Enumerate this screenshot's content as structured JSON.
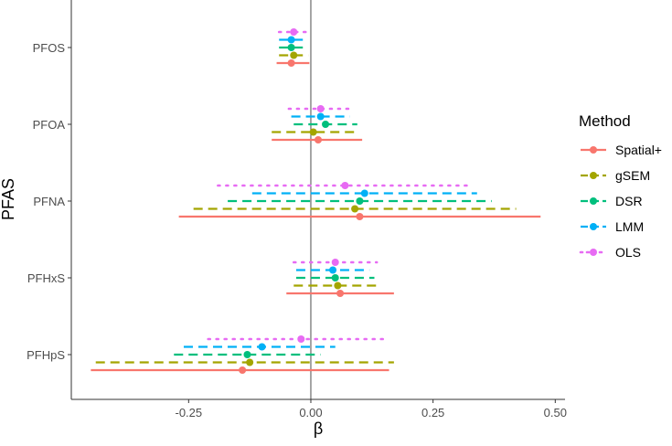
{
  "chart_data": {
    "type": "forest",
    "xlabel": "β",
    "ylabel": "PFAS",
    "xlim": [
      -0.49,
      0.52
    ],
    "x_ticks": [
      -0.25,
      0.0,
      0.25,
      0.5
    ],
    "x_tick_labels": [
      "-0.25",
      "0.00",
      "0.25",
      "0.50"
    ],
    "reference_line_x": 0,
    "grid": false,
    "legend_position": "right",
    "legend_title": "Method",
    "categories": [
      "PFOS",
      "PFOA",
      "PFNA",
      "PFHxS",
      "PFHpS"
    ],
    "series": [
      {
        "name": "Spatial+",
        "color": "#F8766D",
        "linestyle": "solid",
        "points": [
          {
            "category": "PFOS",
            "estimate": -0.04,
            "lower": -0.07,
            "upper": -0.003
          },
          {
            "category": "PFOA",
            "estimate": 0.015,
            "lower": -0.08,
            "upper": 0.105
          },
          {
            "category": "PFNA",
            "estimate": 0.1,
            "lower": -0.27,
            "upper": 0.47
          },
          {
            "category": "PFHxS",
            "estimate": 0.06,
            "lower": -0.05,
            "upper": 0.17
          },
          {
            "category": "PFHpS",
            "estimate": -0.14,
            "lower": -0.45,
            "upper": 0.16
          }
        ]
      },
      {
        "name": "gSEM",
        "color": "#A3A500",
        "linestyle": "dashed",
        "points": [
          {
            "category": "PFOS",
            "estimate": -0.035,
            "lower": -0.065,
            "upper": -0.005
          },
          {
            "category": "PFOA",
            "estimate": 0.005,
            "lower": -0.08,
            "upper": 0.09
          },
          {
            "category": "PFNA",
            "estimate": 0.09,
            "lower": -0.24,
            "upper": 0.42
          },
          {
            "category": "PFHxS",
            "estimate": 0.055,
            "lower": -0.035,
            "upper": 0.14
          },
          {
            "category": "PFHpS",
            "estimate": -0.125,
            "lower": -0.44,
            "upper": 0.17
          }
        ]
      },
      {
        "name": "DSR",
        "color": "#00BF7D",
        "linestyle": "dashed",
        "points": [
          {
            "category": "PFOS",
            "estimate": -0.04,
            "lower": -0.065,
            "upper": -0.01
          },
          {
            "category": "PFOA",
            "estimate": 0.03,
            "lower": -0.035,
            "upper": 0.095
          },
          {
            "category": "PFNA",
            "estimate": 0.1,
            "lower": -0.17,
            "upper": 0.37
          },
          {
            "category": "PFHxS",
            "estimate": 0.05,
            "lower": -0.03,
            "upper": 0.13
          },
          {
            "category": "PFHpS",
            "estimate": -0.13,
            "lower": -0.28,
            "upper": 0.02
          }
        ]
      },
      {
        "name": "LMM",
        "color": "#00B0F6",
        "linestyle": "dashed",
        "points": [
          {
            "category": "PFOS",
            "estimate": -0.04,
            "lower": -0.065,
            "upper": -0.015
          },
          {
            "category": "PFOA",
            "estimate": 0.02,
            "lower": -0.04,
            "upper": 0.08
          },
          {
            "category": "PFNA",
            "estimate": 0.11,
            "lower": -0.12,
            "upper": 0.34
          },
          {
            "category": "PFHxS",
            "estimate": 0.045,
            "lower": -0.03,
            "upper": 0.12
          },
          {
            "category": "PFHpS",
            "estimate": -0.1,
            "lower": -0.26,
            "upper": 0.05
          }
        ]
      },
      {
        "name": "OLS",
        "color": "#E76BF3",
        "linestyle": "dotted",
        "points": [
          {
            "category": "PFOS",
            "estimate": -0.035,
            "lower": -0.065,
            "upper": -0.005
          },
          {
            "category": "PFOA",
            "estimate": 0.02,
            "lower": -0.045,
            "upper": 0.085
          },
          {
            "category": "PFNA",
            "estimate": 0.07,
            "lower": -0.19,
            "upper": 0.33
          },
          {
            "category": "PFHxS",
            "estimate": 0.05,
            "lower": -0.035,
            "upper": 0.135
          },
          {
            "category": "PFHpS",
            "estimate": -0.02,
            "lower": -0.21,
            "upper": 0.16
          }
        ]
      }
    ]
  }
}
